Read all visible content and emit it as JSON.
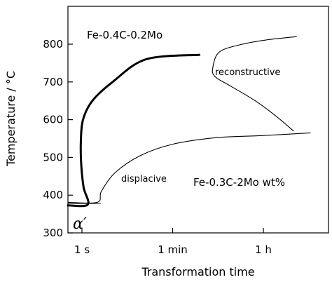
{
  "chart_data": {
    "type": "line",
    "title": "",
    "xlabel": "Transformation time",
    "ylabel": "Temperature / °C",
    "x_scale": "log",
    "x_unit": "s",
    "x_ticks": [
      {
        "label": "1 s",
        "value": 1
      },
      {
        "label": "1 min",
        "value": 60
      },
      {
        "label": "1 h",
        "value": 3600
      }
    ],
    "y_ticks": [
      300,
      400,
      500,
      600,
      700,
      800
    ],
    "ylim": [
      300,
      850
    ],
    "xlim": [
      0.5,
      30000
    ],
    "grid": false,
    "annotations": [
      {
        "id": "alloy1",
        "text": "Fe-0.4C-0.2Mo",
        "size": "large"
      },
      {
        "id": "reconstructive",
        "text": "reconstructive",
        "size": "small"
      },
      {
        "id": "displacive",
        "text": "displacive",
        "size": "small"
      },
      {
        "id": "alloy2",
        "text": "Fe-0.3C-2Mo wt%",
        "size": "large"
      },
      {
        "id": "alpha",
        "text": "α′",
        "size": "symbol"
      }
    ],
    "series": [
      {
        "id": "alloy1-curve",
        "style": "thick",
        "points": [
          [
            0.5,
            373
          ],
          [
            1.3,
            375
          ],
          [
            1.08,
            420
          ],
          [
            0.97,
            480
          ],
          [
            0.95,
            540
          ],
          [
            1.05,
            600
          ],
          [
            1.6,
            650
          ],
          [
            4,
            700
          ],
          [
            18,
            760
          ],
          [
            200,
            772
          ]
        ]
      },
      {
        "id": "reconstructive-c-curve",
        "style": "thin",
        "points": [
          [
            16000,
            820
          ],
          [
            4500,
            812
          ],
          [
            1400,
            800
          ],
          [
            500,
            780
          ],
          [
            370,
            740
          ],
          [
            400,
            715
          ],
          [
            800,
            690
          ],
          [
            2500,
            650
          ],
          [
            7000,
            605
          ],
          [
            14000,
            570
          ]
        ]
      },
      {
        "id": "displacive-curve",
        "style": "thin",
        "points": [
          [
            0.5,
            381
          ],
          [
            2,
            381
          ],
          [
            2.4,
            410
          ],
          [
            4.5,
            460
          ],
          [
            14,
            505
          ],
          [
            60,
            535
          ],
          [
            400,
            552
          ],
          [
            3600,
            558
          ],
          [
            30000,
            565
          ]
        ]
      },
      {
        "id": "ms-line",
        "style": "thin",
        "points": [
          [
            0.5,
            378
          ],
          [
            2.3,
            378
          ]
        ]
      }
    ]
  }
}
